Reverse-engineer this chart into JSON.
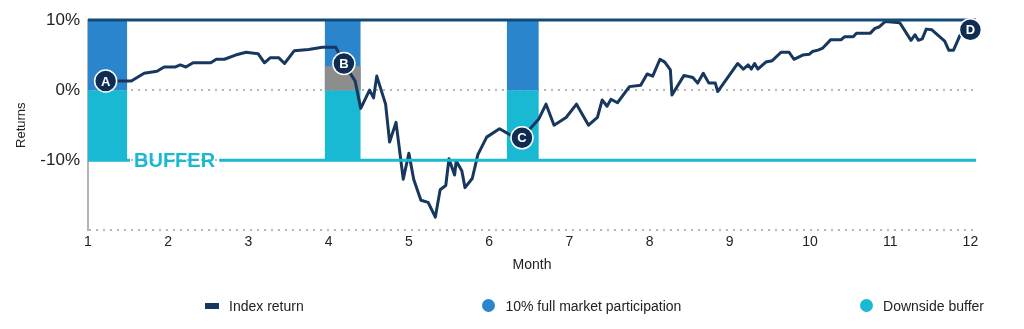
{
  "chart_data": {
    "type": "line",
    "xlabel": "Month",
    "ylabel": "Returns",
    "xlim": [
      1,
      12.07
    ],
    "xticks": [
      1,
      2,
      3,
      4,
      5,
      6,
      7,
      8,
      9,
      10,
      11,
      12
    ],
    "ylim": [
      -20,
      10
    ],
    "yticks": [
      {
        "value": -20,
        "label": null
      },
      {
        "value": -10,
        "label": "-10%"
      },
      {
        "value": 0,
        "label": "0%"
      },
      {
        "value": 10,
        "label": "10%"
      }
    ],
    "grid": "y",
    "legend": "bottom",
    "marker": "none",
    "line_style": "solid",
    "series": [
      {
        "name": "Index return",
        "color": "#17375e",
        "x": [
          1.22,
          1.54,
          1.7,
          1.86,
          1.95,
          2.09,
          2.15,
          2.22,
          2.31,
          2.53,
          2.6,
          2.7,
          2.84,
          2.97,
          3.12,
          3.2,
          3.27,
          3.38,
          3.45,
          3.57,
          3.75,
          3.92,
          4.09,
          4.19,
          4.33,
          4.4,
          4.51,
          4.56,
          4.6,
          4.71,
          4.76,
          4.84,
          4.93,
          5.0,
          5.06,
          5.15,
          5.24,
          5.33,
          5.39,
          5.46,
          5.5,
          5.57,
          5.59,
          5.66,
          5.7,
          5.79,
          5.86,
          5.97,
          6.13,
          6.28,
          6.41,
          6.62,
          6.71,
          6.81,
          6.96,
          7.09,
          7.24,
          7.35,
          7.41,
          7.47,
          7.52,
          7.6,
          7.75,
          7.89,
          7.97,
          8.04,
          8.13,
          8.19,
          8.26,
          8.28,
          8.43,
          8.54,
          8.6,
          8.67,
          8.74,
          8.82,
          8.85,
          9.1,
          9.17,
          9.23,
          9.27,
          9.31,
          9.35,
          9.45,
          9.53,
          9.64,
          9.74,
          9.8,
          9.91,
          9.99,
          10.03,
          10.1,
          10.16,
          10.26,
          10.39,
          10.43,
          10.54,
          10.58,
          10.75,
          10.81,
          10.86,
          10.94,
          11.12,
          11.26,
          11.31,
          11.35,
          11.4,
          11.45,
          11.52,
          11.68,
          11.73,
          11.79,
          11.87,
          12.0
        ],
        "values": [
          1.3,
          1.3,
          2.4,
          2.7,
          3.3,
          3.3,
          3.6,
          3.3,
          3.9,
          3.9,
          4.4,
          4.4,
          5.0,
          5.4,
          5.2,
          3.9,
          4.6,
          4.6,
          3.8,
          5.6,
          5.8,
          6.1,
          6.1,
          3.8,
          1.3,
          -2.6,
          0,
          -1.1,
          2.0,
          -2.0,
          -7.4,
          -4.6,
          -12.7,
          -9.0,
          -12.7,
          -15.7,
          -16.0,
          -18.1,
          -14.2,
          -13.6,
          -9.8,
          -12.1,
          -10.1,
          -11.5,
          -13.9,
          -12.6,
          -9.2,
          -6.7,
          -5.5,
          -6.5,
          -6.8,
          -4.1,
          -2.0,
          -5.0,
          -3.9,
          -2.0,
          -5.0,
          -3.9,
          -1.4,
          -2.3,
          -1.3,
          -1.8,
          0.5,
          0.7,
          2.3,
          2.0,
          4.4,
          4.0,
          2.9,
          -0.7,
          2.1,
          1.8,
          1.0,
          2.4,
          1.0,
          1.0,
          -0.2,
          3.8,
          3.0,
          3.6,
          3.0,
          3.8,
          3.0,
          4.0,
          4.2,
          5.4,
          5.4,
          4.4,
          5.0,
          5.1,
          5.5,
          5.7,
          6.0,
          7.2,
          7.2,
          7.6,
          7.6,
          8.1,
          8.1,
          8.8,
          9.0,
          9.8,
          9.6,
          7.1,
          7.9,
          7.1,
          7.3,
          8.7,
          8.6,
          7.0,
          5.7,
          5.7,
          7.8,
          8.6
        ]
      },
      {
        "name": "10% full market participation",
        "type": "area",
        "color": "#2a85cc",
        "x": [
          1,
          1.49,
          1.54,
          3.95,
          4.4,
          4.42,
          6.22,
          6.62
        ],
        "values": [
          10,
          10,
          null,
          10,
          10,
          null,
          10,
          10
        ]
      },
      {
        "name": "Downside buffer",
        "type": "area",
        "color": "#19b9d3",
        "x": [
          1,
          1.49,
          1.54,
          3.95,
          4.4,
          4.42,
          6.22,
          6.62
        ],
        "values": [
          -10,
          -10,
          null,
          -10,
          -10,
          null,
          -10,
          -10
        ]
      },
      {
        "type": "area",
        "color": "#8c8c8c",
        "x": [
          3.95,
          4.4
        ],
        "values": [
          3.4,
          3.4
        ]
      }
    ],
    "ref_lines": [
      {
        "axis": "y",
        "value": 10,
        "color": "#124a78"
      },
      {
        "axis": "y",
        "value": -10,
        "label": "BUFFER",
        "color": "#19b9d3"
      }
    ],
    "annotations": [
      {
        "text": "A",
        "x": 1.22,
        "y": 1.3
      },
      {
        "text": "B",
        "x": 4.19,
        "y": 3.8
      },
      {
        "text": "C",
        "x": 6.41,
        "y": -6.8
      },
      {
        "text": "D",
        "x": 12.0,
        "y": 8.6
      }
    ]
  }
}
